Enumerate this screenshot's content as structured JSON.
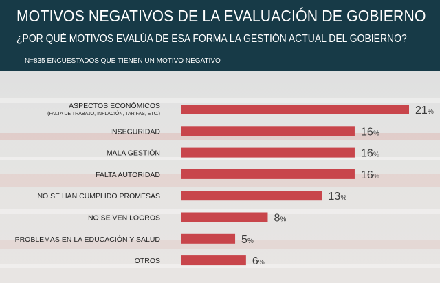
{
  "header": {
    "title": "MOTIVOS NEGATIVOS DE LA EVALUACIÓN DE GOBIERNO",
    "subtitle": "¿POR QUÉ MOTIVOS EVALÚA DE ESA FORMA LA GESTIÓN ACTUAL DEL GOBIERNO?",
    "note": "N=835 ENCUESTADOS QUE TIENEN UN MOTIVO NEGATIVO"
  },
  "colors": {
    "bar": "#c8454b",
    "header_bg": "#173a47",
    "text": "#222222"
  },
  "chart_data": {
    "type": "bar",
    "orientation": "horizontal",
    "title": "MOTIVOS NEGATIVOS DE LA EVALUACIÓN DE GOBIERNO",
    "subtitle": "¿POR QUÉ MOTIVOS EVALÚA DE ESA FORMA LA GESTIÓN ACTUAL DEL GOBIERNO?",
    "unit": "%",
    "categories": [
      "ASPECTOS ECONÓMICOS",
      "INSEGURIDAD",
      "MALA GESTIÓN",
      "FALTA AUTORIDAD",
      "NO SE HAN CUMPLIDO PROMESAS",
      "NO SE VEN LOGROS",
      "PROBLEMAS EN LA EDUCACIÓN Y SALUD",
      "OTROS"
    ],
    "category_notes": [
      "(FALTA DE TRABAJO, INFLACIÓN, TARIFAS, ETC.)",
      "",
      "",
      "",
      "",
      "",
      "",
      ""
    ],
    "values": [
      21,
      16,
      16,
      16,
      13,
      8,
      5,
      6
    ],
    "xlim": [
      0,
      21
    ],
    "grid": false
  }
}
